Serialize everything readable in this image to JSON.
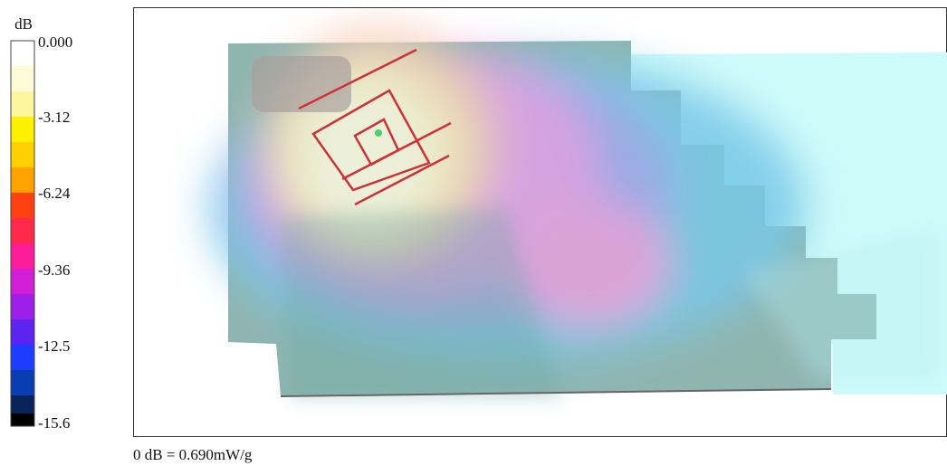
{
  "colorbar": {
    "unit": "dB",
    "ticks": [
      "0.000",
      "-3.12",
      "-6.24",
      "-9.36",
      "-12.5",
      "-15.6"
    ]
  },
  "footnote": "0 dB = 0.690mW/g"
}
